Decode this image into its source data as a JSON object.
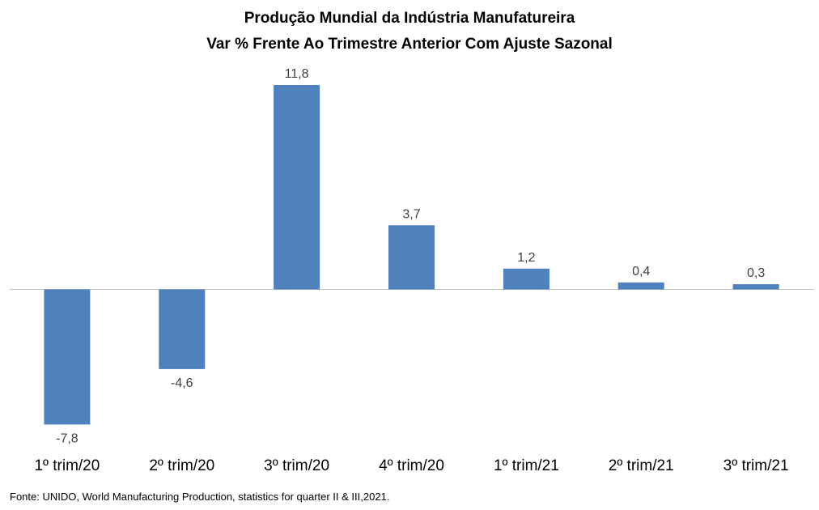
{
  "chart_data": {
    "type": "bar",
    "title": "Produção Mundial da Indústria Manufatureira",
    "subtitle": "Var % Frente Ao Trimestre Anterior Com Ajuste Sazonal",
    "categories": [
      "1º trim/20",
      "2º trim/20",
      "3º trim/20",
      "4º trim/20",
      "1º trim/21",
      "2º trim/21",
      "3º trim/21"
    ],
    "values": [
      -7.8,
      -4.6,
      11.8,
      3.7,
      1.2,
      0.4,
      0.3
    ],
    "data_labels": [
      "-7,8",
      "-4,6",
      "11,8",
      "3,7",
      "1,2",
      "0,4",
      "0,3"
    ],
    "ylim": [
      -7.8,
      11.8
    ],
    "grid": false,
    "legend": "none",
    "bar_color": "#4f81bd",
    "source": "Fonte: UNIDO, World Manufacturing Production,  statistics for quarter II & III,2021."
  }
}
